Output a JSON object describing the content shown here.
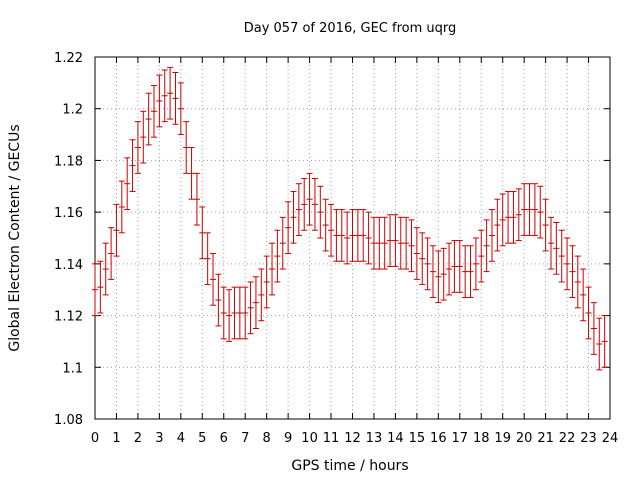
{
  "chart_data": {
    "type": "scatter",
    "title": "Day 057 of 2016, GEC from uqrg",
    "xlabel": "GPS time / hours",
    "ylabel": "Global Electron Content / GECUs",
    "xlim": [
      0,
      24
    ],
    "ylim": [
      1.08,
      1.22
    ],
    "xticks": [
      0,
      1,
      2,
      3,
      4,
      5,
      6,
      7,
      8,
      9,
      10,
      11,
      12,
      13,
      14,
      15,
      16,
      17,
      18,
      19,
      20,
      21,
      22,
      23,
      24
    ],
    "yticks": [
      "1.08",
      "1.1",
      "1.12",
      "1.14",
      "1.16",
      "1.18",
      "1.2",
      "1.22"
    ],
    "grid": true,
    "color": "#cc0000",
    "error": 0.01,
    "x": [
      0.0,
      0.25,
      0.5,
      0.75,
      1.0,
      1.25,
      1.5,
      1.75,
      2.0,
      2.25,
      2.5,
      2.75,
      3.0,
      3.25,
      3.5,
      3.75,
      4.0,
      4.25,
      4.5,
      4.75,
      5.0,
      5.25,
      5.5,
      5.75,
      6.0,
      6.25,
      6.5,
      6.75,
      7.0,
      7.25,
      7.5,
      7.75,
      8.0,
      8.25,
      8.5,
      8.75,
      9.0,
      9.25,
      9.5,
      9.75,
      10.0,
      10.25,
      10.5,
      10.75,
      11.0,
      11.25,
      11.5,
      11.75,
      12.0,
      12.25,
      12.5,
      12.75,
      13.0,
      13.25,
      13.5,
      13.75,
      14.0,
      14.25,
      14.5,
      14.75,
      15.0,
      15.25,
      15.5,
      15.75,
      16.0,
      16.25,
      16.5,
      16.75,
      17.0,
      17.25,
      17.5,
      17.75,
      18.0,
      18.25,
      18.5,
      18.75,
      19.0,
      19.25,
      19.5,
      19.75,
      20.0,
      20.25,
      20.5,
      20.75,
      21.0,
      21.25,
      21.5,
      21.75,
      22.0,
      22.25,
      22.5,
      22.75,
      23.0,
      23.25,
      23.5,
      23.75
    ],
    "y": [
      1.13,
      1.131,
      1.138,
      1.144,
      1.153,
      1.162,
      1.171,
      1.178,
      1.185,
      1.189,
      1.196,
      1.199,
      1.203,
      1.205,
      1.206,
      1.204,
      1.2,
      1.185,
      1.175,
      1.165,
      1.152,
      1.142,
      1.134,
      1.126,
      1.121,
      1.12,
      1.121,
      1.121,
      1.121,
      1.123,
      1.125,
      1.128,
      1.133,
      1.138,
      1.143,
      1.148,
      1.154,
      1.158,
      1.161,
      1.163,
      1.165,
      1.163,
      1.16,
      1.155,
      1.153,
      1.151,
      1.151,
      1.15,
      1.151,
      1.151,
      1.151,
      1.15,
      1.148,
      1.148,
      1.148,
      1.149,
      1.149,
      1.148,
      1.148,
      1.147,
      1.144,
      1.142,
      1.14,
      1.137,
      1.135,
      1.136,
      1.138,
      1.139,
      1.139,
      1.137,
      1.137,
      1.14,
      1.143,
      1.147,
      1.151,
      1.155,
      1.157,
      1.158,
      1.158,
      1.159,
      1.161,
      1.161,
      1.161,
      1.16,
      1.155,
      1.148,
      1.146,
      1.143,
      1.14,
      1.137,
      1.133,
      1.128,
      1.121,
      1.115,
      1.109,
      1.11
    ]
  }
}
